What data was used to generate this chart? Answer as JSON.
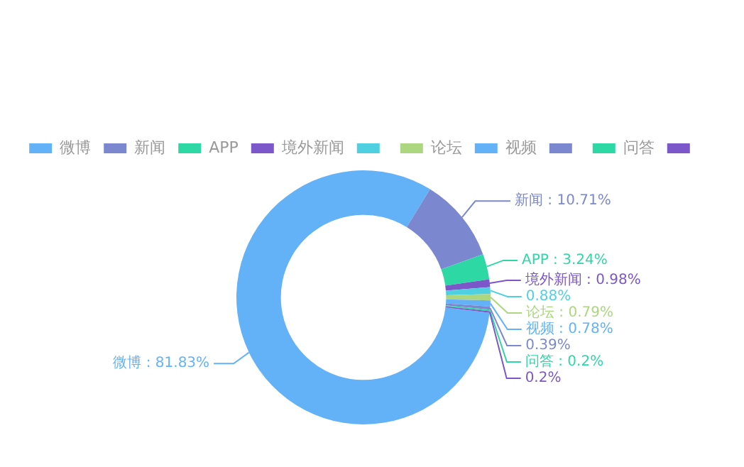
{
  "chart_data": {
    "type": "donut",
    "categories": [
      "微博",
      "新闻",
      "APP",
      "境外新闻",
      null,
      "论坛",
      "视频",
      null,
      "问答",
      null
    ],
    "values": [
      81.83,
      10.71,
      3.24,
      0.98,
      0.88,
      0.79,
      0.78,
      0.39,
      0.2,
      0.2
    ],
    "colors": [
      "#63b2f7",
      "#7b88cf",
      "#2ed8a4",
      "#7b57c9",
      "#4fd0e0",
      "#acd67f",
      "#63b2f7",
      "#7b88cf",
      "#2ed8a4",
      "#7b57c9"
    ],
    "value_labels": [
      "微博 : 81.83%",
      "新闻 : 10.71%",
      "APP : 3.24%",
      "境外新闻 : 0.98%",
      "0.88%",
      "论坛 : 0.79%",
      "视频 : 0.78%",
      "0.39%",
      "问答 : 0.2%",
      "0.2%"
    ],
    "legend": "top"
  }
}
